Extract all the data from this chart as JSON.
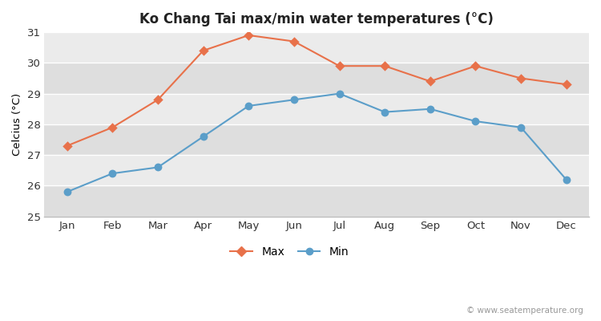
{
  "title": "Ko Chang Tai max/min water temperatures (°C)",
  "ylabel": "Celcius (°C)",
  "months": [
    "Jan",
    "Feb",
    "Mar",
    "Apr",
    "May",
    "Jun",
    "Jul",
    "Aug",
    "Sep",
    "Oct",
    "Nov",
    "Dec"
  ],
  "max_temps": [
    27.3,
    27.9,
    28.8,
    30.4,
    30.9,
    30.7,
    29.9,
    29.9,
    29.4,
    29.9,
    29.5,
    29.3
  ],
  "min_temps": [
    25.8,
    26.4,
    26.6,
    27.6,
    28.6,
    28.8,
    29.0,
    28.4,
    28.5,
    28.1,
    27.9,
    26.2
  ],
  "max_color": "#e8714a",
  "min_color": "#5b9ec9",
  "ylim": [
    25,
    31
  ],
  "yticks": [
    25,
    26,
    27,
    28,
    29,
    30,
    31
  ],
  "fig_bg_color": "#ffffff",
  "plot_bg_light": "#ebebeb",
  "plot_bg_dark": "#dedede",
  "grid_color": "#ffffff",
  "watermark": "© www.seatemperature.org",
  "bottom_spine_color": "#bbbbbb"
}
